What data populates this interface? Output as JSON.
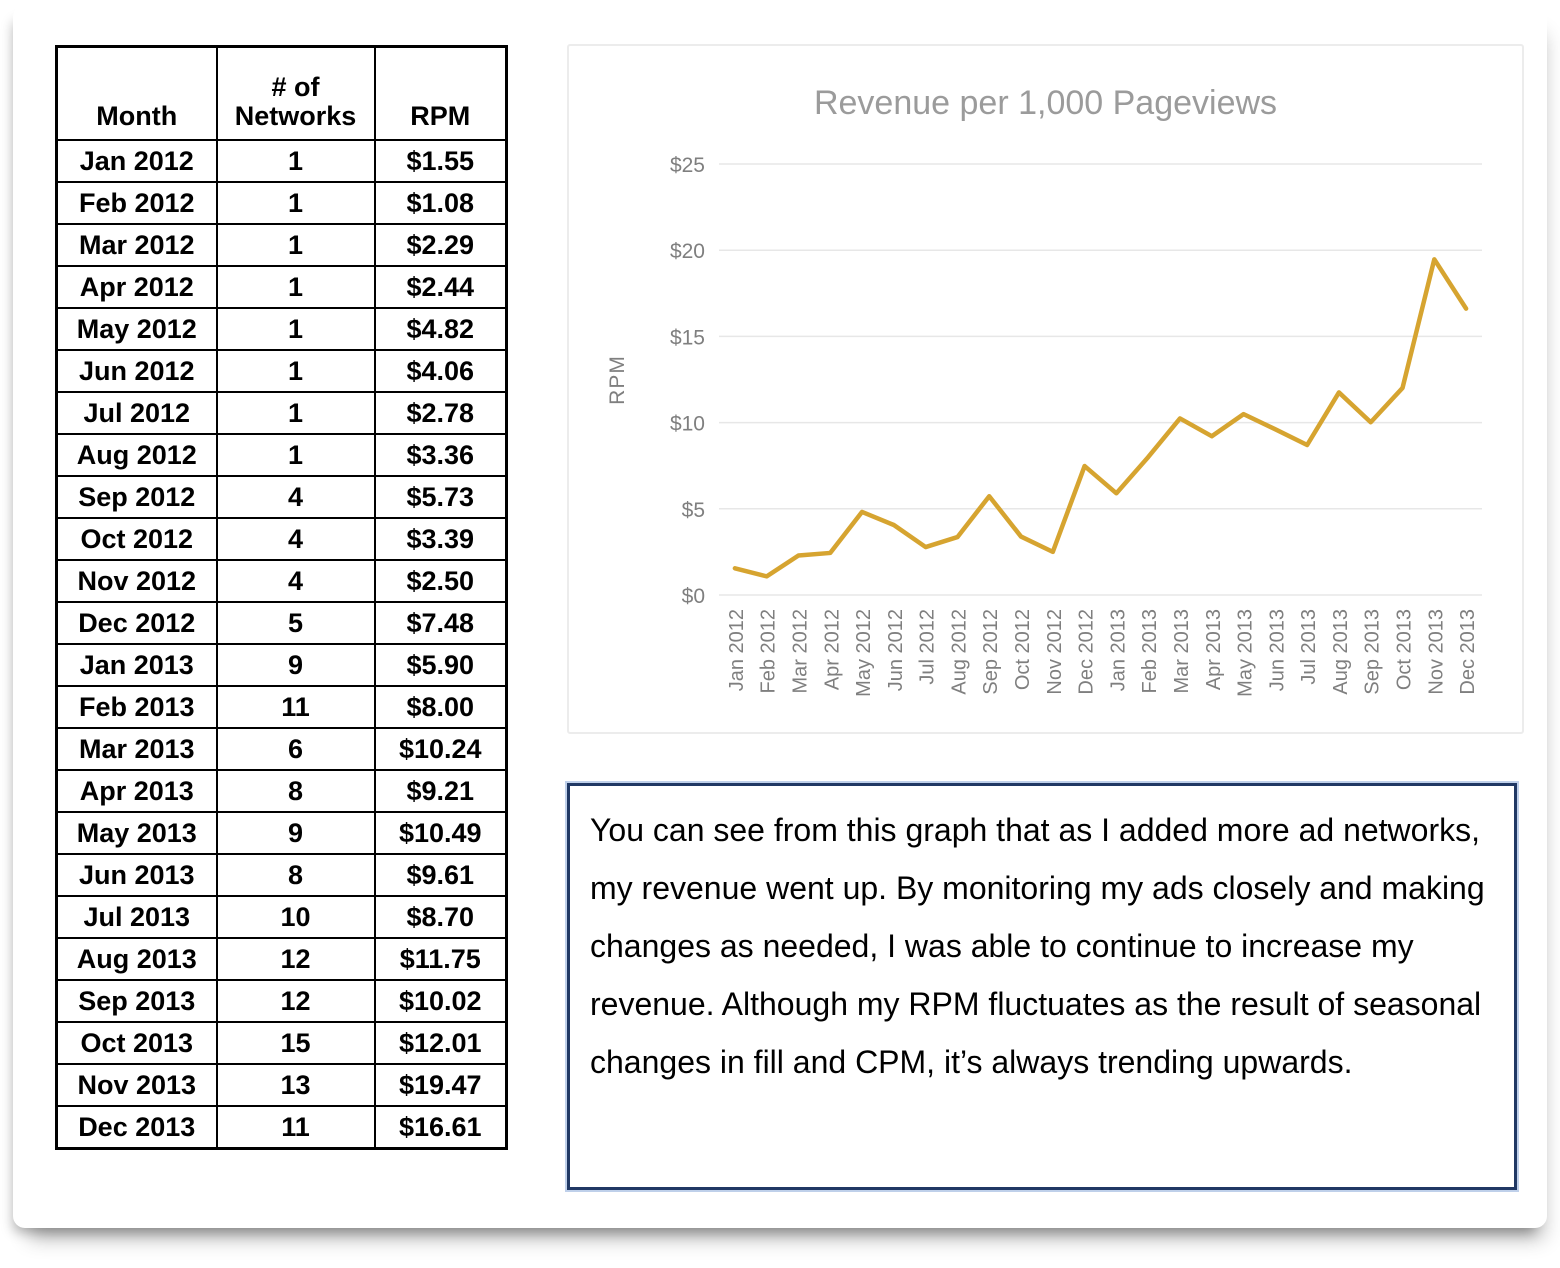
{
  "table": {
    "headers": {
      "month": "Month",
      "networks": "# of Networks",
      "rpm": "RPM"
    },
    "rows": [
      {
        "month": "Jan 2012",
        "networks": "1",
        "rpm": "$1.55"
      },
      {
        "month": "Feb 2012",
        "networks": "1",
        "rpm": "$1.08"
      },
      {
        "month": "Mar 2012",
        "networks": "1",
        "rpm": "$2.29"
      },
      {
        "month": "Apr 2012",
        "networks": "1",
        "rpm": "$2.44"
      },
      {
        "month": "May 2012",
        "networks": "1",
        "rpm": "$4.82"
      },
      {
        "month": "Jun 2012",
        "networks": "1",
        "rpm": "$4.06"
      },
      {
        "month": "Jul 2012",
        "networks": "1",
        "rpm": "$2.78"
      },
      {
        "month": "Aug 2012",
        "networks": "1",
        "rpm": "$3.36"
      },
      {
        "month": "Sep 2012",
        "networks": "4",
        "rpm": "$5.73"
      },
      {
        "month": "Oct 2012",
        "networks": "4",
        "rpm": "$3.39"
      },
      {
        "month": "Nov 2012",
        "networks": "4",
        "rpm": "$2.50"
      },
      {
        "month": "Dec 2012",
        "networks": "5",
        "rpm": "$7.48"
      },
      {
        "month": "Jan 2013",
        "networks": "9",
        "rpm": "$5.90"
      },
      {
        "month": "Feb 2013",
        "networks": "11",
        "rpm": "$8.00"
      },
      {
        "month": "Mar 2013",
        "networks": "6",
        "rpm": "$10.24"
      },
      {
        "month": "Apr 2013",
        "networks": "8",
        "rpm": "$9.21"
      },
      {
        "month": "May 2013",
        "networks": "9",
        "rpm": "$10.49"
      },
      {
        "month": "Jun 2013",
        "networks": "8",
        "rpm": "$9.61"
      },
      {
        "month": "Jul 2013",
        "networks": "10",
        "rpm": "$8.70"
      },
      {
        "month": "Aug 2013",
        "networks": "12",
        "rpm": "$11.75"
      },
      {
        "month": "Sep 2013",
        "networks": "12",
        "rpm": "$10.02"
      },
      {
        "month": "Oct 2013",
        "networks": "15",
        "rpm": "$12.01"
      },
      {
        "month": "Nov 2013",
        "networks": "13",
        "rpm": "$19.47"
      },
      {
        "month": "Dec 2013",
        "networks": "11",
        "rpm": "$16.61"
      }
    ]
  },
  "chart_data": {
    "type": "line",
    "title": "Revenue per 1,000 Pageviews",
    "xlabel": "",
    "ylabel": "RPM",
    "x": [
      "Jan 2012",
      "Feb 2012",
      "Mar 2012",
      "Apr 2012",
      "May 2012",
      "Jun 2012",
      "Jul 2012",
      "Aug 2012",
      "Sep 2012",
      "Oct 2012",
      "Nov 2012",
      "Dec 2012",
      "Jan 2013",
      "Feb 2013",
      "Mar 2013",
      "Apr 2013",
      "May 2013",
      "Jun 2013",
      "Jul 2013",
      "Aug 2013",
      "Sep 2013",
      "Oct 2013",
      "Nov 2013",
      "Dec 2013"
    ],
    "values": [
      1.55,
      1.08,
      2.29,
      2.44,
      4.82,
      4.06,
      2.78,
      3.36,
      5.73,
      3.39,
      2.5,
      7.48,
      5.9,
      8.0,
      10.24,
      9.21,
      10.49,
      9.61,
      8.7,
      11.75,
      10.02,
      12.01,
      19.47,
      16.61
    ],
    "ylim": [
      0,
      25
    ],
    "yticks": [
      {
        "value": 0,
        "label": "$0"
      },
      {
        "value": 5,
        "label": "$5"
      },
      {
        "value": 10,
        "label": "$10"
      },
      {
        "value": 15,
        "label": "$15"
      },
      {
        "value": 20,
        "label": "$20"
      },
      {
        "value": 25,
        "label": "$25"
      }
    ],
    "series_color": "#D6A430",
    "grid": "horizontal",
    "legend": "none"
  },
  "note": {
    "text": "You can see from this graph that as I added more ad networks, my revenue went up. By monitoring my ads closely and making changes as needed, I was able to continue to increase my revenue. Although my RPM fluctuates as the result of seasonal changes in fill and CPM, it’s always trending upwards."
  }
}
